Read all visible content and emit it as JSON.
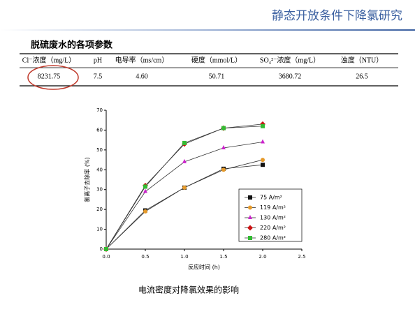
{
  "header": {
    "title": "静态开放条件下降氯研究"
  },
  "section_title": "脱硫废水的各项参数",
  "table": {
    "columns": [
      "Cl⁻浓度（mg/L）",
      "pH",
      "电导率（ms/cm）",
      "硬度（mmol/L）",
      "SO₄²⁻浓度（mg/L）",
      "浊度（NTU）"
    ],
    "rows": [
      [
        "8231.75",
        "7.5",
        "4.60",
        "50.71",
        "3680.72",
        "26.5"
      ]
    ]
  },
  "chart_data": {
    "type": "line",
    "caption": "电流密度对降氯效果的影响",
    "x_label": "反应时间 (h)",
    "y_label": "氯离子去除率 (%)",
    "x": [
      0,
      0.5,
      1,
      1.5,
      2
    ],
    "xlim": [
      0,
      2.5
    ],
    "xticks": [
      {
        "value": 0,
        "label": "0.0"
      },
      0.5,
      {
        "value": 1,
        "label": "1.0"
      },
      1.5,
      {
        "value": 2,
        "label": "2.0"
      },
      2.5
    ],
    "ylim": [
      0,
      70
    ],
    "yticks": [
      0,
      10,
      20,
      30,
      40,
      50,
      60,
      70
    ],
    "series": [
      {
        "name": "75 A/m²",
        "color": "#111111",
        "marker": "square",
        "values": [
          0,
          19.5,
          31,
          40.5,
          42.5
        ]
      },
      {
        "name": "119 A/m²",
        "color": "#e69a2a",
        "marker": "circle",
        "values": [
          0,
          19,
          31,
          40,
          45
        ]
      },
      {
        "name": "130 A/m²",
        "color": "#cc22cc",
        "marker": "triangle",
        "values": [
          0,
          29,
          44,
          51,
          54
        ]
      },
      {
        "name": "220 A/m²",
        "color": "#cc1111",
        "marker": "diamond",
        "values": [
          0,
          32,
          53,
          61,
          63
        ]
      },
      {
        "name": "280 A/m²",
        "color": "#33bb33",
        "marker": "square",
        "values": [
          0,
          31.5,
          53.5,
          61,
          62
        ]
      }
    ]
  }
}
